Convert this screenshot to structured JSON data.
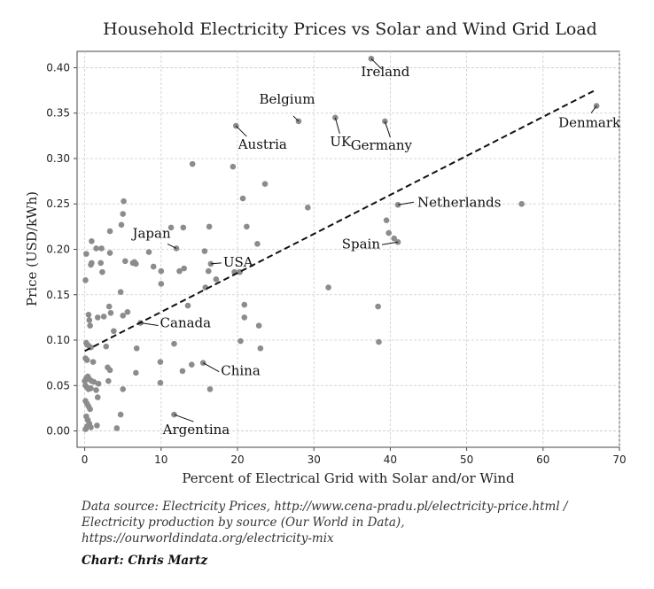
{
  "chart_data": {
    "type": "scatter",
    "title": "Household Electricity Prices vs Solar and Wind Grid Load",
    "xlabel": "Percent of Electrical Grid with Solar and/or Wind",
    "ylabel": "Price (USD/kWh)",
    "xlim": [
      -1,
      70
    ],
    "ylim": [
      -0.018,
      0.418
    ],
    "xticks": [
      "0",
      "10",
      "20",
      "30",
      "40",
      "50",
      "60",
      "70"
    ],
    "yticks": [
      "0.00",
      "0.05",
      "0.10",
      "0.15",
      "0.20",
      "0.25",
      "0.30",
      "0.35",
      "0.40"
    ],
    "grid": true,
    "point_color": "#8c8c8c",
    "trendline": {
      "x": [
        0,
        67
      ],
      "y": [
        0.088,
        0.376
      ],
      "style": "dashed",
      "color": "#111111"
    },
    "annotations": [
      {
        "label": "Ireland",
        "x": 37.5,
        "y": 0.41
      },
      {
        "label": "Belgium",
        "x": 28.0,
        "y": 0.341
      },
      {
        "label": "Austria",
        "x": 19.8,
        "y": 0.336
      },
      {
        "label": "UK",
        "x": 32.8,
        "y": 0.345
      },
      {
        "label": "Germany",
        "x": 39.3,
        "y": 0.341
      },
      {
        "label": "Denmark",
        "x": 67.0,
        "y": 0.358
      },
      {
        "label": "Netherlands",
        "x": 41.0,
        "y": 0.249
      },
      {
        "label": "Spain",
        "x": 41.0,
        "y": 0.208
      },
      {
        "label": "Japan",
        "x": 12.0,
        "y": 0.201
      },
      {
        "label": "USA",
        "x": 16.5,
        "y": 0.184
      },
      {
        "label": "Canada",
        "x": 7.3,
        "y": 0.119
      },
      {
        "label": "China",
        "x": 15.5,
        "y": 0.075
      },
      {
        "label": "Argentina",
        "x": 11.7,
        "y": 0.018
      }
    ],
    "points": [
      [
        37.5,
        0.41
      ],
      [
        28.0,
        0.341
      ],
      [
        19.8,
        0.336
      ],
      [
        32.8,
        0.345
      ],
      [
        39.3,
        0.341
      ],
      [
        67.0,
        0.358
      ],
      [
        41.0,
        0.249
      ],
      [
        41.0,
        0.208
      ],
      [
        12.0,
        0.201
      ],
      [
        16.5,
        0.184
      ],
      [
        7.3,
        0.119
      ],
      [
        15.5,
        0.075
      ],
      [
        11.7,
        0.018
      ],
      [
        57.2,
        0.25
      ],
      [
        39.5,
        0.232
      ],
      [
        39.8,
        0.218
      ],
      [
        40.5,
        0.212
      ],
      [
        38.4,
        0.137
      ],
      [
        38.5,
        0.098
      ],
      [
        31.9,
        0.158
      ],
      [
        29.2,
        0.246
      ],
      [
        14.1,
        0.294
      ],
      [
        19.4,
        0.291
      ],
      [
        23.6,
        0.272
      ],
      [
        20.7,
        0.256
      ],
      [
        21.2,
        0.225
      ],
      [
        22.6,
        0.206
      ],
      [
        20.3,
        0.175
      ],
      [
        19.6,
        0.175
      ],
      [
        20.9,
        0.139
      ],
      [
        20.9,
        0.125
      ],
      [
        22.8,
        0.116
      ],
      [
        23.0,
        0.091
      ],
      [
        20.4,
        0.099
      ],
      [
        16.4,
        0.046
      ],
      [
        14.0,
        0.073
      ],
      [
        12.8,
        0.066
      ],
      [
        15.7,
        0.198
      ],
      [
        16.2,
        0.176
      ],
      [
        15.8,
        0.158
      ],
      [
        16.3,
        0.225
      ],
      [
        17.2,
        0.167
      ],
      [
        12.9,
        0.224
      ],
      [
        11.3,
        0.224
      ],
      [
        13.0,
        0.179
      ],
      [
        12.4,
        0.176
      ],
      [
        13.5,
        0.138
      ],
      [
        10.0,
        0.176
      ],
      [
        10.0,
        0.162
      ],
      [
        9.0,
        0.181
      ],
      [
        8.4,
        0.197
      ],
      [
        9.9,
        0.076
      ],
      [
        9.9,
        0.053
      ],
      [
        11.7,
        0.096
      ],
      [
        6.7,
        0.064
      ],
      [
        6.8,
        0.091
      ],
      [
        5.0,
        0.046
      ],
      [
        4.7,
        0.018
      ],
      [
        4.2,
        0.003
      ],
      [
        5.1,
        0.253
      ],
      [
        5.0,
        0.239
      ],
      [
        4.8,
        0.227
      ],
      [
        5.3,
        0.187
      ],
      [
        6.5,
        0.186
      ],
      [
        6.7,
        0.184
      ],
      [
        6.3,
        0.185
      ],
      [
        4.7,
        0.153
      ],
      [
        5.6,
        0.131
      ],
      [
        5.0,
        0.127
      ],
      [
        3.2,
        0.137
      ],
      [
        3.4,
        0.13
      ],
      [
        3.8,
        0.11
      ],
      [
        3.0,
        0.07
      ],
      [
        3.3,
        0.067
      ],
      [
        3.1,
        0.055
      ],
      [
        3.3,
        0.196
      ],
      [
        3.3,
        0.22
      ],
      [
        2.2,
        0.201
      ],
      [
        2.3,
        0.175
      ],
      [
        2.1,
        0.185
      ],
      [
        1.5,
        0.201
      ],
      [
        2.5,
        0.126
      ],
      [
        1.7,
        0.125
      ],
      [
        2.8,
        0.093
      ],
      [
        1.5,
        0.045
      ],
      [
        1.8,
        0.052
      ],
      [
        1.7,
        0.037
      ],
      [
        1.6,
        0.006
      ],
      [
        0.9,
        0.209
      ],
      [
        0.2,
        0.195
      ],
      [
        0.8,
        0.183
      ],
      [
        0.9,
        0.185
      ],
      [
        0.1,
        0.166
      ],
      [
        0.5,
        0.128
      ],
      [
        0.6,
        0.122
      ],
      [
        0.7,
        0.116
      ],
      [
        0.2,
        0.097
      ],
      [
        0.3,
        0.095
      ],
      [
        0.5,
        0.094
      ],
      [
        0.8,
        0.092
      ],
      [
        0.1,
        0.08
      ],
      [
        0.3,
        0.078
      ],
      [
        1.1,
        0.076
      ],
      [
        0.0,
        0.055
      ],
      [
        0.2,
        0.058
      ],
      [
        0.4,
        0.06
      ],
      [
        0.6,
        0.057
      ],
      [
        0.9,
        0.055
      ],
      [
        1.2,
        0.054
      ],
      [
        0.1,
        0.05
      ],
      [
        0.3,
        0.048
      ],
      [
        0.5,
        0.046
      ],
      [
        0.8,
        0.047
      ],
      [
        0.1,
        0.033
      ],
      [
        0.3,
        0.03
      ],
      [
        0.5,
        0.027
      ],
      [
        0.7,
        0.024
      ],
      [
        0.2,
        0.016
      ],
      [
        0.4,
        0.012
      ],
      [
        0.6,
        0.008
      ],
      [
        0.8,
        0.004
      ],
      [
        0.1,
        0.002
      ],
      [
        0.3,
        0.005
      ]
    ]
  },
  "footer": {
    "source_line1": "Data source: Electricity Prices, http://www.cena-pradu.pl/electricity-price.html /",
    "source_line2": "Electricity production by source (Our World in Data),",
    "source_line3": "https://ourworldindata.org/electricity-mix",
    "credit": "Chart: Chris Martz"
  }
}
